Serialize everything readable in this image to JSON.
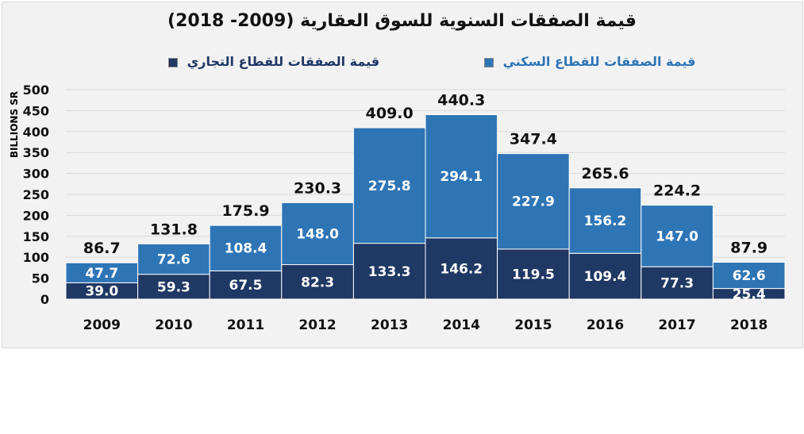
{
  "chart_data": {
    "type": "bar",
    "stacked": true,
    "title": "قيمة الصفقات السنوية للسوق العقارية (2009- 2018)",
    "ylabel": "BILLIONS SR",
    "ylim": [
      0,
      500
    ],
    "yticks": [
      0,
      50,
      100,
      150,
      200,
      250,
      300,
      350,
      400,
      450,
      500
    ],
    "grid": true,
    "legend_position": "top",
    "categories": [
      "2009",
      "2010",
      "2011",
      "2012",
      "2013",
      "2014",
      "2015",
      "2016",
      "2017",
      "2018"
    ],
    "series": [
      {
        "name": "قيمة الصفقات للقطاع التجاري",
        "color": "#1f3864",
        "values": [
          39.0,
          59.3,
          67.5,
          82.3,
          133.3,
          146.2,
          119.5,
          109.4,
          77.3,
          25.4
        ]
      },
      {
        "name": "قيمة الصفقات للقطاع السكني",
        "color": "#2e75b6",
        "values": [
          47.7,
          72.6,
          108.4,
          148.0,
          275.8,
          294.1,
          227.9,
          156.2,
          147.0,
          62.6
        ]
      }
    ],
    "totals": [
      86.7,
      131.8,
      175.9,
      230.3,
      409.0,
      440.3,
      347.4,
      265.6,
      224.2,
      87.9
    ]
  }
}
